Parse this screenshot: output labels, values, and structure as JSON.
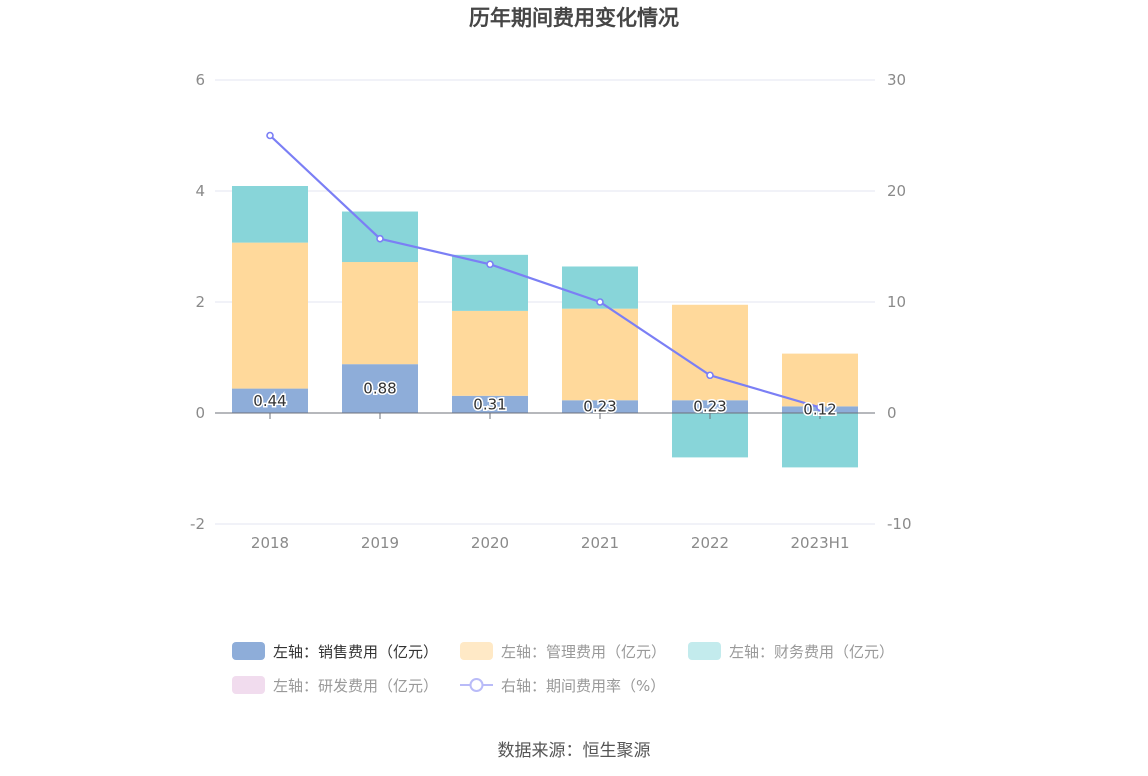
{
  "chart_data": {
    "type": "bar+line",
    "title": "历年期间费用变化情况",
    "categories": [
      "2018",
      "2019",
      "2020",
      "2021",
      "2022",
      "2023H1"
    ],
    "left_axis": {
      "ylim": [
        -2,
        6
      ],
      "ticks": [
        "-2",
        "0",
        "2",
        "4",
        "6"
      ]
    },
    "right_axis": {
      "ylim": [
        -10,
        30
      ],
      "ticks": [
        "-10",
        "0",
        "10",
        "20",
        "30"
      ]
    },
    "grid": true,
    "series": [
      {
        "name": "左轴：销售费用（亿元）",
        "axis": "left",
        "kind": "bar",
        "color": "#8eadd9",
        "values": [
          0.44,
          0.88,
          0.31,
          0.23,
          0.23,
          0.12
        ],
        "labels": [
          "0.44",
          "0.88",
          "0.31",
          "0.23",
          "0.23",
          "0.12"
        ]
      },
      {
        "name": "左轴：管理费用（亿元）",
        "axis": "left",
        "kind": "bar",
        "color": "#ffd99b",
        "values": [
          2.63,
          1.84,
          1.53,
          1.65,
          1.72,
          0.95
        ]
      },
      {
        "name": "左轴：财务费用（亿元）",
        "axis": "left",
        "kind": "bar",
        "color": "#88d5d9",
        "values": [
          1.02,
          0.91,
          1.01,
          0.76,
          -0.8,
          -0.98
        ]
      },
      {
        "name": "左轴：研发费用（亿元）",
        "axis": "left",
        "kind": "bar",
        "color": "#f1dcee",
        "values": [
          0,
          0,
          0,
          0,
          0,
          0
        ]
      },
      {
        "name": "右轴：期间费用率（%）",
        "axis": "right",
        "kind": "line",
        "color": "#7b7ff5",
        "values": [
          25.0,
          15.7,
          13.4,
          10.0,
          3.4,
          0.5
        ]
      }
    ],
    "legend_position": "bottom"
  },
  "legend": {
    "row1": [
      "左轴：销售费用（亿元）",
      "左轴：管理费用（亿元）",
      "左轴：财务费用（亿元）"
    ],
    "row2": [
      "左轴：研发费用（亿元）",
      "右轴：期间费用率（%）"
    ]
  },
  "source": "数据来源：恒生聚源"
}
